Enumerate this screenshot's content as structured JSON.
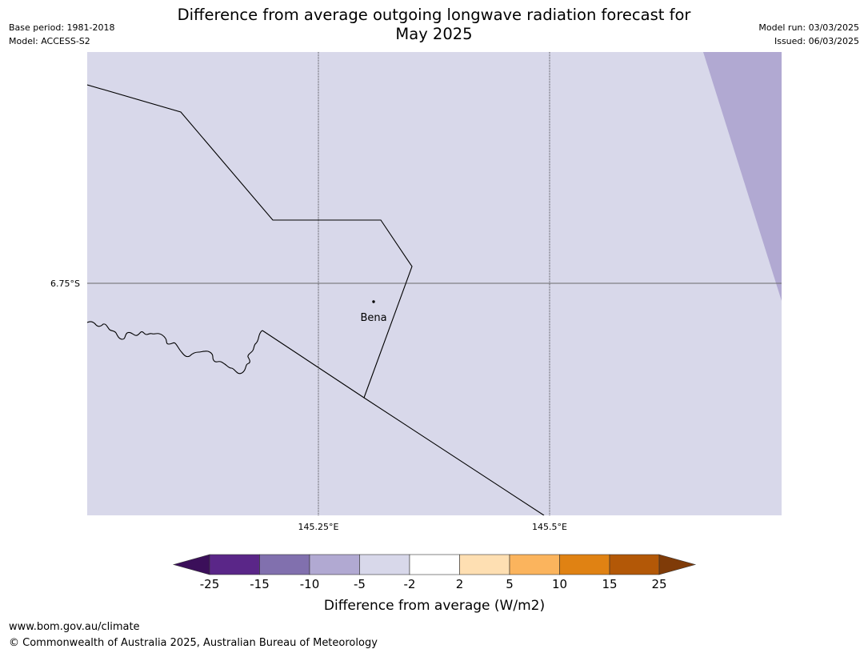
{
  "title": {
    "line1": "Difference from average outgoing longwave radiation forecast for",
    "line2": "May 2025"
  },
  "meta_left": {
    "base_period": "Base period: 1981-2018",
    "model": "Model: ACCESS-S2"
  },
  "meta_right": {
    "model_run": "Model run: 03/03/2025",
    "issued": "Issued: 06/03/2025"
  },
  "map": {
    "background_color": "#d8d8ea",
    "gridlines": {
      "longitudes": [
        "145.25°E",
        "145.5°E"
      ],
      "latitudes": [
        "6.75°S"
      ]
    },
    "place": {
      "name": "Bena"
    }
  },
  "colorbar": {
    "label": "Difference from average (W/m2)",
    "ticks": [
      "-25",
      "-15",
      "-10",
      "-5",
      "-2",
      "2",
      "5",
      "10",
      "15",
      "25"
    ],
    "colors": [
      "#3b0f5a",
      "#5a2688",
      "#8170ae",
      "#b1a9d2",
      "#d8d8ea",
      "#ffffff",
      "#fedfb2",
      "#fbb45d",
      "#e08213",
      "#b35807",
      "#7f3b08"
    ]
  },
  "footer": {
    "url": "www.bom.gov.au/climate",
    "copyright": "© Commonwealth of Australia 2025, Australian Bureau of Meteorology"
  }
}
